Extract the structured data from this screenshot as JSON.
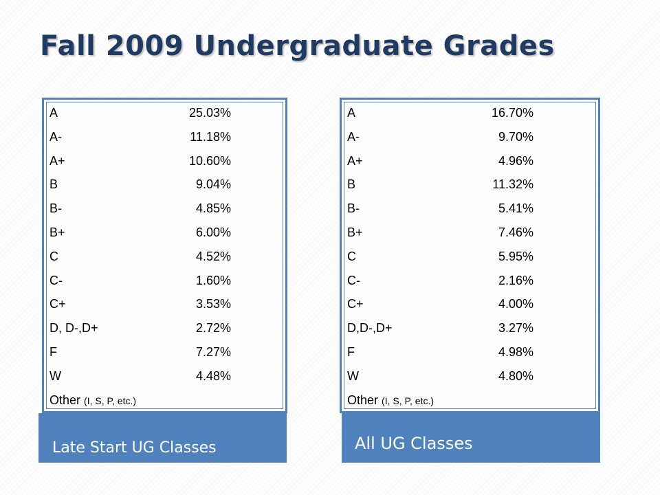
{
  "slide": {
    "title": "Fall 2009 Undergraduate Grades"
  },
  "colors": {
    "title": "#1f3b63",
    "accent": "#4f81bd"
  },
  "left_panel": {
    "label": "Late Start UG Classes",
    "rows": [
      {
        "grade": "A",
        "percent": "25.03%"
      },
      {
        "grade": "A-",
        "percent": "11.18%"
      },
      {
        "grade": "A+",
        "percent": "10.60%"
      },
      {
        "grade": "B",
        "percent": "9.04%"
      },
      {
        "grade": "B-",
        "percent": "4.85%"
      },
      {
        "grade": "B+",
        "percent": "6.00%"
      },
      {
        "grade": "C",
        "percent": "4.52%"
      },
      {
        "grade": "C-",
        "percent": "1.60%"
      },
      {
        "grade": "C+",
        "percent": "3.53%"
      },
      {
        "grade": "D, D-,D+",
        "percent": "2.72%"
      },
      {
        "grade": "F",
        "percent": "7.27%"
      },
      {
        "grade": "W",
        "percent": "4.48%"
      }
    ],
    "other_label": "Other",
    "other_note": "(I, S, P, etc.)"
  },
  "right_panel": {
    "label": "All UG Classes",
    "rows": [
      {
        "grade": "A",
        "percent": "16.70%"
      },
      {
        "grade": "A-",
        "percent": "9.70%"
      },
      {
        "grade": "A+",
        "percent": "4.96%"
      },
      {
        "grade": "B",
        "percent": "11.32%"
      },
      {
        "grade": "B-",
        "percent": "5.41%"
      },
      {
        "grade": "B+",
        "percent": "7.46%"
      },
      {
        "grade": "C",
        "percent": "5.95%"
      },
      {
        "grade": "C-",
        "percent": "2.16%"
      },
      {
        "grade": "C+",
        "percent": "4.00%"
      },
      {
        "grade": "D,D-,D+",
        "percent": "3.27%"
      },
      {
        "grade": "F",
        "percent": "4.98%"
      },
      {
        "grade": "W",
        "percent": "4.80%"
      }
    ],
    "other_label": "Other",
    "other_note": "(I, S, P, etc.)"
  }
}
